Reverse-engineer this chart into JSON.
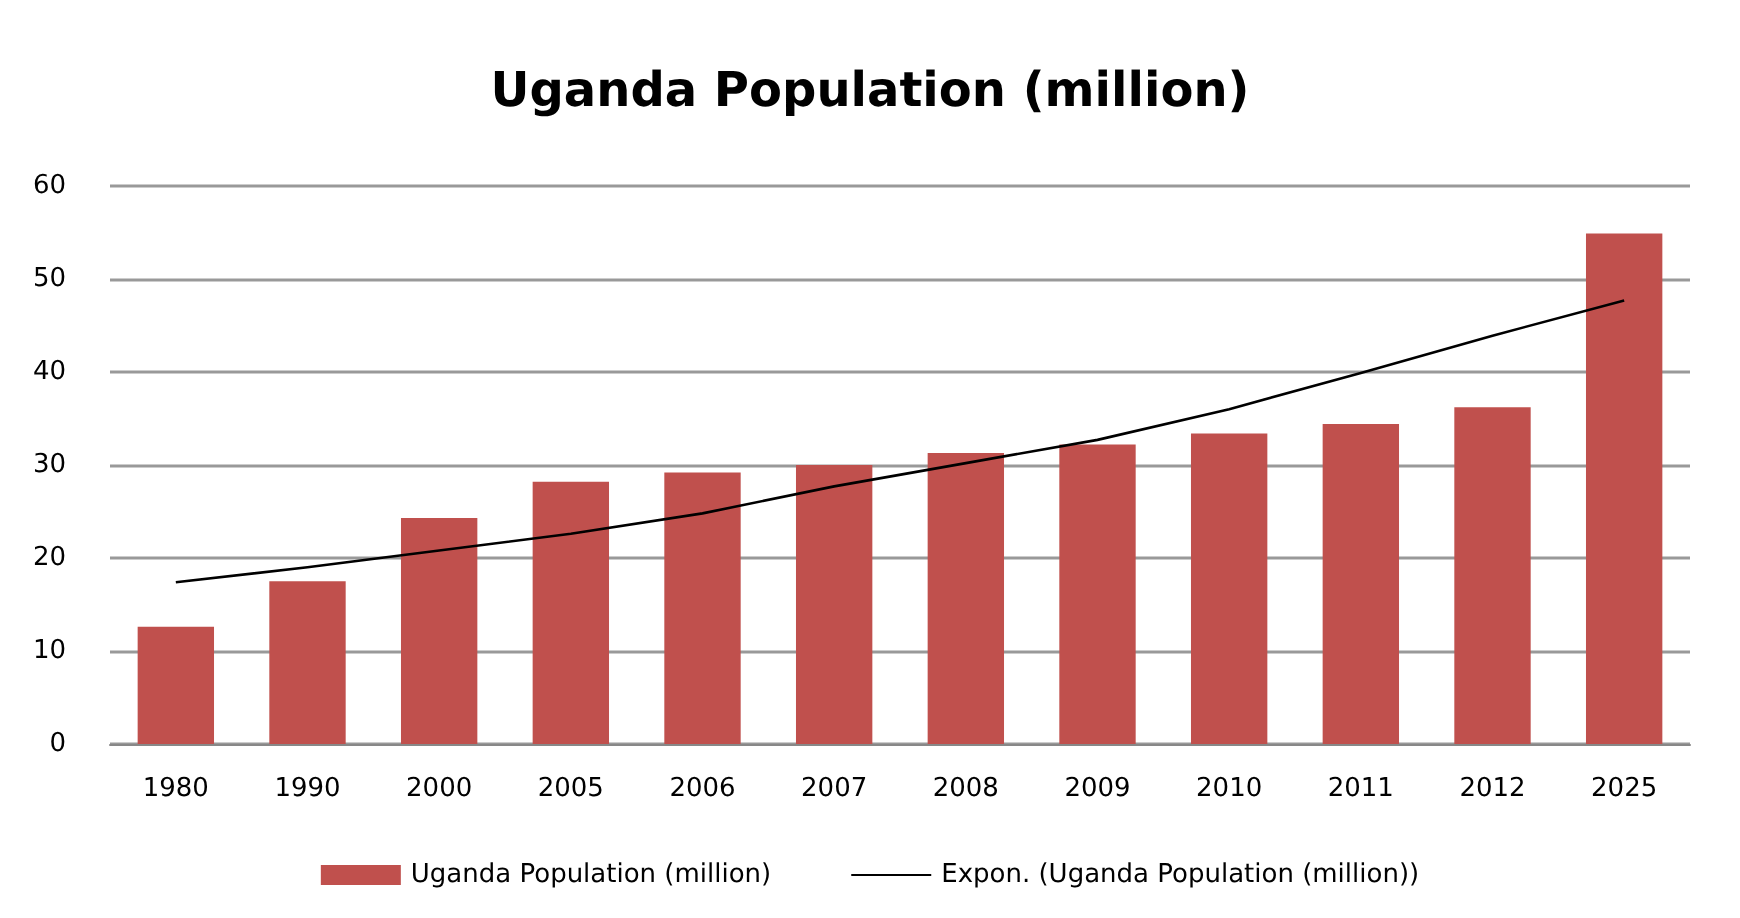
{
  "chart_data": {
    "type": "bar",
    "title": "Uganda Population (million)",
    "categories": [
      "1980",
      "1990",
      "2000",
      "2005",
      "2006",
      "2007",
      "2008",
      "2009",
      "2010",
      "2011",
      "2012",
      "2025"
    ],
    "series": [
      {
        "name": "Uganda Population (million)",
        "color": "#c0504d",
        "values": [
          12.6,
          17.5,
          24.3,
          28.2,
          29.2,
          30.0,
          31.3,
          32.2,
          33.4,
          34.4,
          36.2,
          54.9
        ]
      },
      {
        "name": "Expon. (Uganda Population (million))",
        "type": "line",
        "color": "#000000",
        "values": [
          17.4,
          19.0,
          20.8,
          22.6,
          24.8,
          27.7,
          30.2,
          32.7,
          36.0,
          39.9,
          43.9,
          47.7
        ]
      }
    ],
    "ylim": [
      0,
      60
    ],
    "yticks": [
      0,
      10,
      20,
      30,
      40,
      50,
      60
    ],
    "grid": "y",
    "legend": "bottom",
    "marker": "none"
  }
}
